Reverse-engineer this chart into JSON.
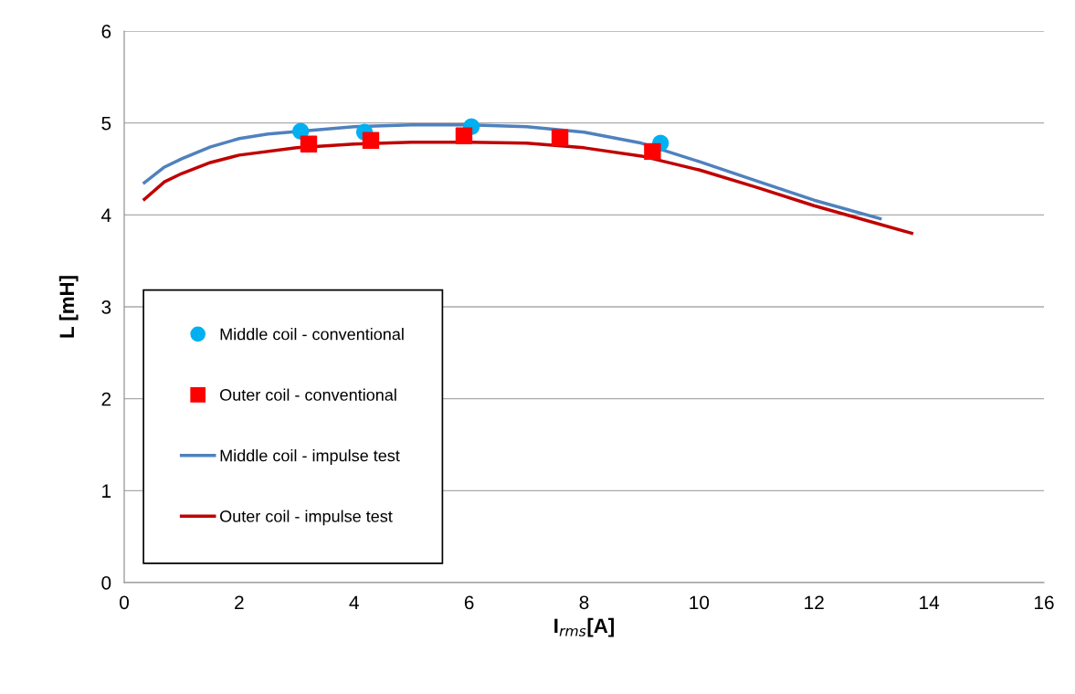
{
  "chart_data": {
    "type": "scatter",
    "xlabel": "I$_{rms}$[A]",
    "ylabel": "L [mH]",
    "xlim": [
      0,
      16
    ],
    "ylim": [
      0,
      6
    ],
    "xticks": [
      0,
      2,
      4,
      6,
      8,
      10,
      12,
      14,
      16
    ],
    "yticks": [
      0,
      1,
      2,
      3,
      4,
      5,
      6
    ],
    "grid": "y",
    "legend": "lower left",
    "series": [
      {
        "name": "Middle coil - conventional",
        "marker": "circle",
        "color": "#00b0f0",
        "x": [
          3.07,
          4.18,
          6.04,
          9.33
        ],
        "values": [
          4.91,
          4.9,
          4.96,
          4.78
        ]
      },
      {
        "name": "Outer coil - conventional",
        "marker": "square",
        "color": "#ff0000",
        "x": [
          3.21,
          4.29,
          5.91,
          7.58,
          9.19
        ],
        "values": [
          4.77,
          4.81,
          4.86,
          4.84,
          4.69
        ]
      },
      {
        "name": "Middle coil - impulse test",
        "type": "line",
        "marker": "none",
        "color": "#4f81bd",
        "x": [
          0.35,
          0.7,
          1,
          1.5,
          2,
          2.5,
          4,
          5,
          6,
          7,
          8,
          9,
          10,
          11,
          12,
          13.15
        ],
        "values": [
          4.35,
          4.52,
          4.61,
          4.74,
          4.83,
          4.88,
          4.96,
          4.98,
          4.98,
          4.96,
          4.9,
          4.78,
          4.58,
          4.37,
          4.16,
          3.96
        ]
      },
      {
        "name": "Outer coil - impulse test",
        "type": "line",
        "marker": "none",
        "color": "#c00000",
        "x": [
          0.35,
          0.7,
          1,
          1.5,
          2,
          3,
          4,
          5,
          6,
          7,
          8,
          9,
          10,
          11,
          12,
          13.7
        ],
        "values": [
          4.17,
          4.36,
          4.45,
          4.57,
          4.65,
          4.73,
          4.77,
          4.79,
          4.79,
          4.78,
          4.73,
          4.64,
          4.49,
          4.3,
          4.1,
          3.8
        ]
      }
    ]
  }
}
